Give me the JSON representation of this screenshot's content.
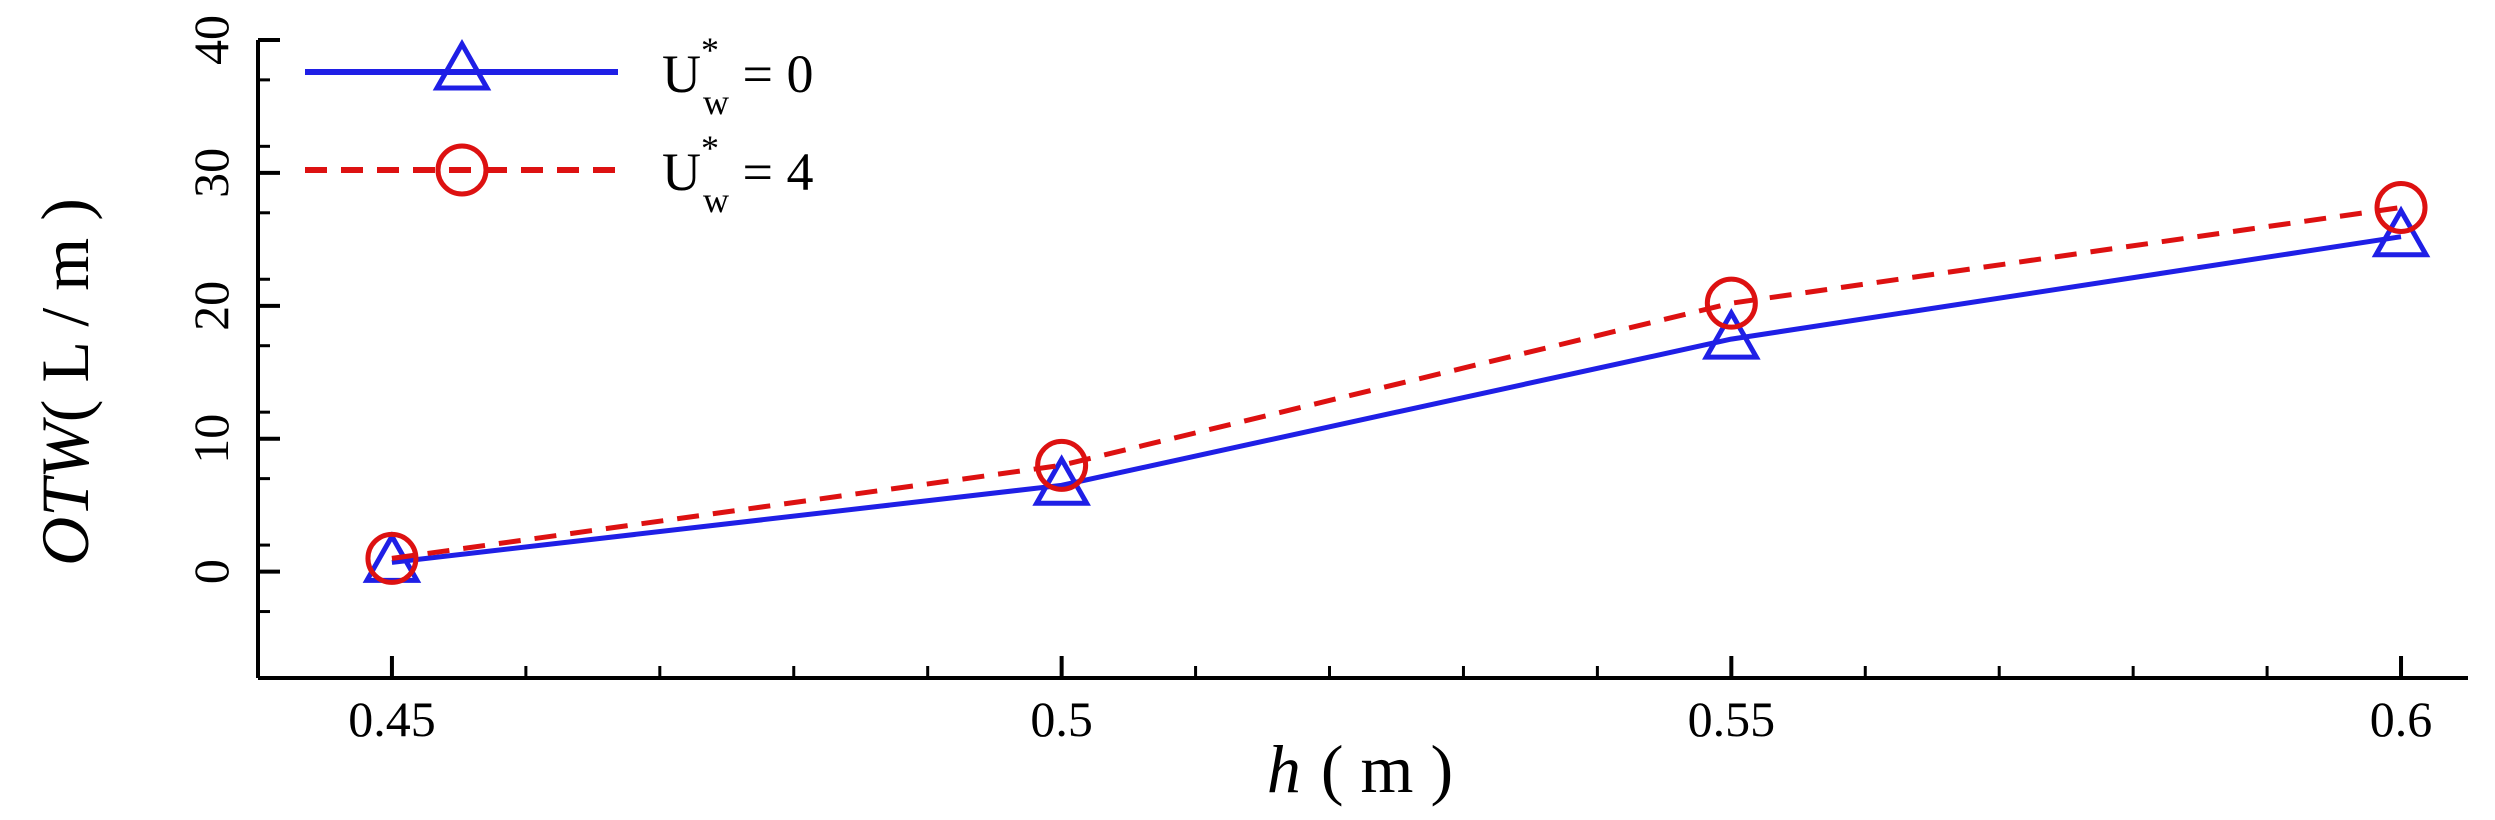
{
  "chart_data": {
    "type": "line",
    "x": [
      0.45,
      0.5,
      0.55,
      0.6
    ],
    "x_tick_labels": [
      "0.45",
      "0.5",
      "0.55",
      "0.6"
    ],
    "xlim": [
      0.44,
      0.605
    ],
    "ylim": [
      -8,
      40
    ],
    "y_ticks": [
      0,
      10,
      20,
      30,
      40
    ],
    "y_tick_labels": [
      "0",
      "10",
      "20",
      "30",
      "40"
    ],
    "xlabel": {
      "italic": "h",
      "unit": "( m )"
    },
    "ylabel": {
      "italic": "OTW",
      "unit": "( L / m )"
    },
    "legend_position": "top-left",
    "grid": false,
    "series": [
      {
        "name": "U*w = 0",
        "legend": {
          "base": "U",
          "sup": "*",
          "sub": "w",
          "rest": " = 0"
        },
        "values": [
          0.7,
          6.5,
          17.5,
          25.2
        ],
        "color": "#1f1fe6",
        "dash": "solid",
        "marker": "triangle"
      },
      {
        "name": "U*w = 4",
        "legend": {
          "base": "U",
          "sup": "*",
          "sub": "w",
          "rest": " = 4"
        },
        "values": [
          1.0,
          8.0,
          20.2,
          27.4
        ],
        "color": "#dd1111",
        "dash": "dashed",
        "marker": "circle"
      }
    ]
  }
}
